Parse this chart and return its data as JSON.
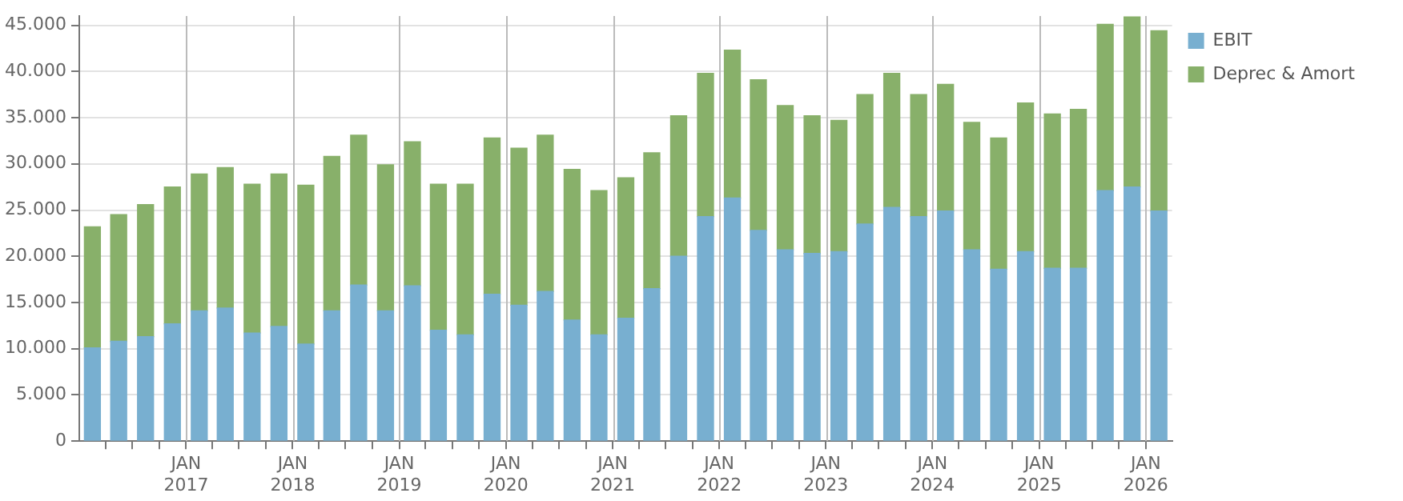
{
  "chart_data": {
    "type": "bar",
    "stacked": true,
    "x": [
      "2016-02-15",
      "2016-05-15",
      "2016-08-15",
      "2016-11-15",
      "2017-02-15",
      "2017-05-15",
      "2017-08-15",
      "2017-11-15",
      "2018-02-15",
      "2018-05-15",
      "2018-08-15",
      "2018-11-15",
      "2019-02-15",
      "2019-05-15",
      "2019-08-15",
      "2019-11-15",
      "2020-02-15",
      "2020-05-15",
      "2020-08-15",
      "2020-11-15",
      "2021-02-15",
      "2021-05-15",
      "2021-08-15",
      "2021-11-15",
      "2022-02-15",
      "2022-05-15",
      "2022-08-15",
      "2022-11-15",
      "2023-02-15",
      "2023-05-15",
      "2023-08-15",
      "2023-11-15",
      "2024-02-15",
      "2024-05-15",
      "2024-08-15",
      "2024-11-15",
      "2025-02-15",
      "2025-05-15",
      "2025-08-15",
      "2025-11-15",
      "2026-02-15"
    ],
    "series": [
      {
        "name": "EBIT",
        "color": "#78afd0",
        "values": [
          10100,
          10800,
          11300,
          12700,
          14100,
          14400,
          11700,
          12400,
          10500,
          14100,
          16900,
          14100,
          16800,
          12000,
          11500,
          15900,
          14700,
          16200,
          13100,
          11500,
          13300,
          16500,
          20000,
          24300,
          26300,
          22800,
          20700,
          20300,
          20500,
          23500,
          25300,
          24300,
          24900,
          20700,
          18600,
          20500,
          18700,
          18700,
          27100,
          27500,
          24900
        ]
      },
      {
        "name": "Deprec & Amort",
        "color": "#88b06a",
        "values": [
          13100,
          13700,
          14300,
          14800,
          14800,
          15200,
          16100,
          16500,
          17200,
          16700,
          16200,
          15800,
          15600,
          15800,
          16300,
          16900,
          17000,
          16900,
          16300,
          15600,
          15200,
          14700,
          15200,
          15500,
          16000,
          16300,
          15600,
          14900,
          14200,
          14000,
          14500,
          13200,
          13700,
          13800,
          14200,
          16100,
          16700,
          17200,
          18000,
          18400,
          19500
        ]
      }
    ],
    "xlim": [
      "2016-01-01",
      "2026-04-01"
    ],
    "xticks": [
      {
        "value": "2016-04-01",
        "label": null
      },
      {
        "value": "2016-07-01",
        "label": null
      },
      {
        "value": "2016-10-01",
        "label": null
      },
      {
        "value": "2017-01-01",
        "label": "JAN 2017"
      },
      {
        "value": "2017-04-01",
        "label": null
      },
      {
        "value": "2017-07-01",
        "label": null
      },
      {
        "value": "2017-10-01",
        "label": null
      },
      {
        "value": "2018-01-01",
        "label": "JAN 2018"
      },
      {
        "value": "2018-04-01",
        "label": null
      },
      {
        "value": "2018-07-01",
        "label": null
      },
      {
        "value": "2018-10-01",
        "label": null
      },
      {
        "value": "2019-01-01",
        "label": "JAN 2019"
      },
      {
        "value": "2019-04-01",
        "label": null
      },
      {
        "value": "2019-07-01",
        "label": null
      },
      {
        "value": "2019-10-01",
        "label": null
      },
      {
        "value": "2020-01-01",
        "label": "JAN 2020"
      },
      {
        "value": "2020-04-01",
        "label": null
      },
      {
        "value": "2020-07-01",
        "label": null
      },
      {
        "value": "2020-10-01",
        "label": null
      },
      {
        "value": "2021-01-01",
        "label": "JAN 2021"
      },
      {
        "value": "2021-04-01",
        "label": null
      },
      {
        "value": "2021-07-01",
        "label": null
      },
      {
        "value": "2021-10-01",
        "label": null
      },
      {
        "value": "2022-01-01",
        "label": "JAN 2022"
      },
      {
        "value": "2022-04-01",
        "label": null
      },
      {
        "value": "2022-07-01",
        "label": null
      },
      {
        "value": "2022-10-01",
        "label": null
      },
      {
        "value": "2023-01-01",
        "label": "JAN 2023"
      },
      {
        "value": "2023-04-01",
        "label": null
      },
      {
        "value": "2023-07-01",
        "label": null
      },
      {
        "value": "2023-10-01",
        "label": null
      },
      {
        "value": "2024-01-01",
        "label": "JAN 2024"
      },
      {
        "value": "2024-04-01",
        "label": null
      },
      {
        "value": "2024-07-01",
        "label": null
      },
      {
        "value": "2024-10-01",
        "label": null
      },
      {
        "value": "2025-01-01",
        "label": "JAN 2025"
      },
      {
        "value": "2025-04-01",
        "label": null
      },
      {
        "value": "2025-07-01",
        "label": null
      },
      {
        "value": "2025-10-01",
        "label": null
      },
      {
        "value": "2026-01-01",
        "label": "JAN 2026"
      }
    ],
    "ylim": [
      0,
      46000
    ],
    "yticks": [
      0,
      {
        "value": 5000,
        "label": "5.000"
      },
      {
        "value": 10000,
        "label": "10.000"
      },
      {
        "value": 15000,
        "label": "15.000"
      },
      {
        "value": 20000,
        "label": "20.000"
      },
      {
        "value": 25000,
        "label": "25.000"
      },
      {
        "value": 30000,
        "label": "30.000"
      },
      {
        "value": 35000,
        "label": "35.000"
      },
      {
        "value": 40000,
        "label": "40.000"
      },
      {
        "value": 45000,
        "label": "45.000"
      }
    ],
    "grid": true,
    "legend": "top right"
  }
}
